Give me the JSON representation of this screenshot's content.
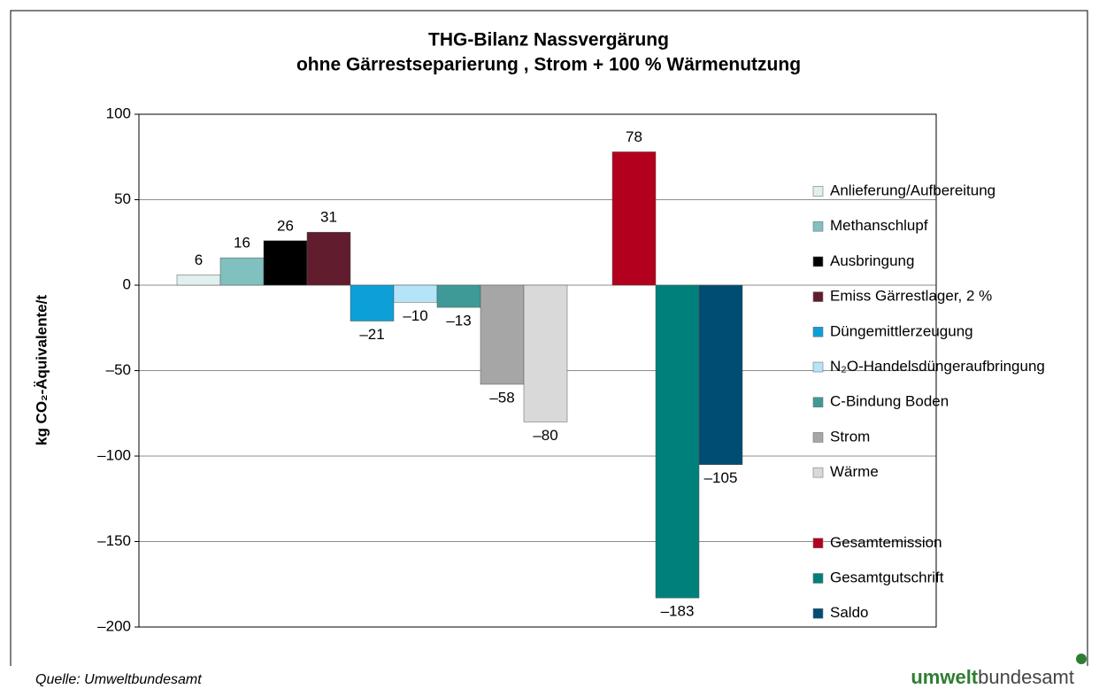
{
  "chart_data": {
    "type": "bar",
    "title": [
      "THG-Bilanz Nassvergärung",
      "ohne Gärrestseparierung , Strom + 100 % Wärmenutzung"
    ],
    "ylabel": "kg CO₂-Äquivalente/t",
    "ylim": [
      -200,
      100
    ],
    "yticks": [
      {
        "value": -200,
        "label": "–200"
      },
      {
        "value": -150,
        "label": "–150"
      },
      {
        "value": -100,
        "label": "–100"
      },
      {
        "value": -50,
        "label": "–50"
      },
      0,
      50,
      100
    ],
    "grid": true,
    "legend": "right",
    "series": [
      {
        "name": "Anlieferung/Aufbereitung",
        "color": "#dff0ee",
        "values": [
          6
        ]
      },
      {
        "name": "Methanschlupf",
        "color": "#80c0bf",
        "values": [
          16
        ]
      },
      {
        "name": "Ausbringung",
        "color": "#000000",
        "values": [
          26
        ]
      },
      {
        "name": "Emiss Gärrestlager, 2 %",
        "color": "#611c2e",
        "values": [
          31
        ]
      },
      {
        "name": "Düngemittlerzeugung",
        "color": "#0d9fd8",
        "values": [
          -21
        ],
        "value_labels": [
          "–21"
        ]
      },
      {
        "name": "N₂O-Handelsdüngeraufbringung",
        "color": "#b3e4f8",
        "values": [
          -10
        ],
        "value_labels": [
          "–10"
        ]
      },
      {
        "name": "C-Bindung Boden",
        "color": "#3d9a97",
        "values": [
          -13
        ],
        "value_labels": [
          "–13"
        ]
      },
      {
        "name": "Strom",
        "color": "#a6a6a6",
        "values": [
          -58
        ],
        "value_labels": [
          "–58"
        ]
      },
      {
        "name": "Wärme",
        "color": "#d9d9d9",
        "values": [
          -80
        ],
        "value_labels": [
          "–80"
        ]
      },
      {
        "name": "Gesamtemission",
        "color": "#b2001e",
        "values": [
          78
        ]
      },
      {
        "name": "Gesamtgutschrift",
        "color": "#00807a",
        "values": [
          -183
        ],
        "value_labels": [
          "–183"
        ]
      },
      {
        "name": "Saldo",
        "color": "#004d73",
        "values": [
          -105
        ],
        "value_labels": [
          "–105"
        ]
      }
    ],
    "source": "Quelle: Umweltbundesamt",
    "logo": [
      "umwelt",
      "bundesamt"
    ]
  }
}
